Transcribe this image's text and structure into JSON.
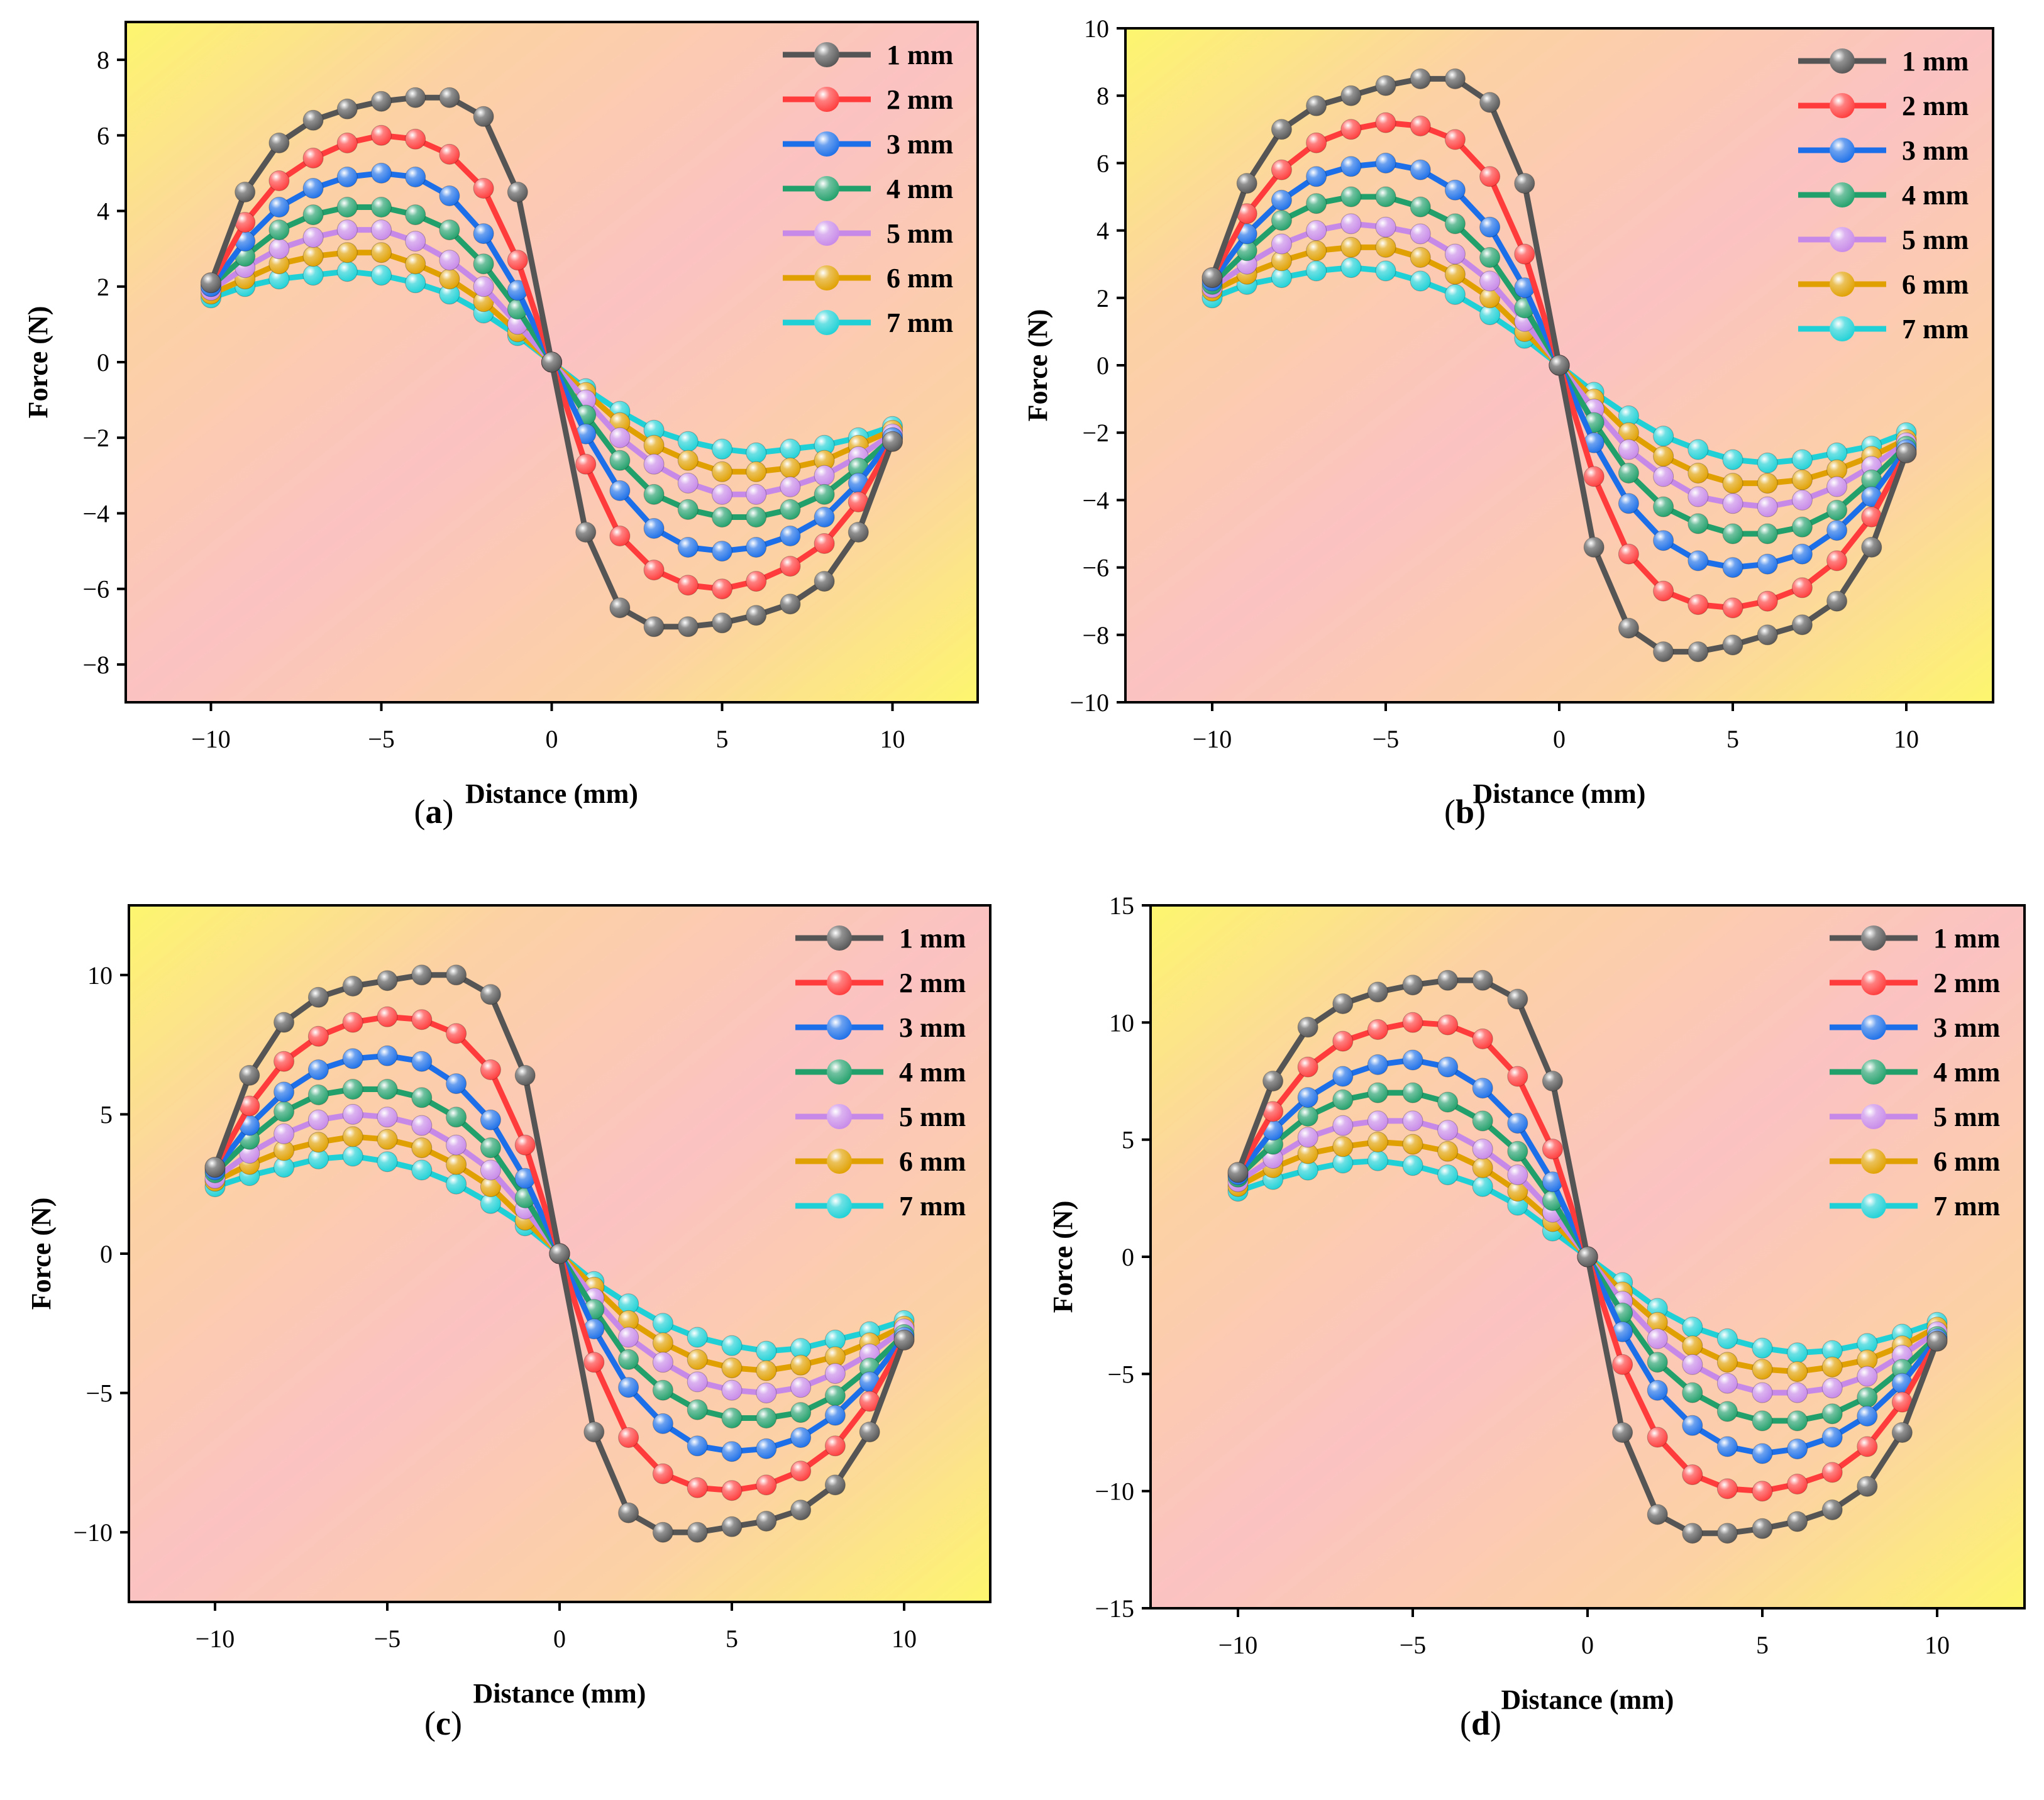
{
  "chart_data": [
    {
      "type": "line",
      "caption": "a",
      "xlabel": "Distance (mm)",
      "ylabel": "Force (N)",
      "xlim": [
        -12.5,
        12.5
      ],
      "ylim": [
        -9,
        9
      ],
      "xticks": [
        -10,
        -5,
        0,
        5,
        10
      ],
      "xtick_labels": [
        "−10",
        "−5",
        "0",
        "5",
        "10"
      ],
      "yticks": [
        -8,
        -6,
        -4,
        -2,
        0,
        2,
        4,
        6,
        8
      ],
      "ytick_labels": [
        "−8",
        "−6",
        "−4",
        "−2",
        "0",
        "2",
        "4",
        "6",
        "8"
      ],
      "legend_position": "top-right",
      "x": [
        -10,
        -9,
        -8,
        -7,
        -6,
        -5,
        -4,
        -3,
        -2,
        -1,
        0,
        1,
        2,
        3,
        4,
        5,
        6,
        7,
        8,
        9,
        10
      ],
      "series": [
        {
          "name": "1 mm",
          "color": "#555555",
          "values": [
            2.1,
            4.5,
            5.8,
            6.4,
            6.7,
            6.9,
            7.0,
            7.0,
            6.5,
            4.5,
            0,
            -4.5,
            -6.5,
            -7.0,
            -7.0,
            -6.9,
            -6.7,
            -6.4,
            -5.8,
            -4.5,
            -2.1
          ]
        },
        {
          "name": "2 mm",
          "color": "#ff3b3b",
          "values": [
            2.1,
            3.7,
            4.8,
            5.4,
            5.8,
            6.0,
            5.9,
            5.5,
            4.6,
            2.7,
            0,
            -2.7,
            -4.6,
            -5.5,
            -5.9,
            -6.0,
            -5.8,
            -5.4,
            -4.8,
            -3.7,
            -2.1
          ]
        },
        {
          "name": "3 mm",
          "color": "#1c6fe8",
          "values": [
            2.0,
            3.2,
            4.1,
            4.6,
            4.9,
            5.0,
            4.9,
            4.4,
            3.4,
            1.9,
            0,
            -1.9,
            -3.4,
            -4.4,
            -4.9,
            -5.0,
            -4.9,
            -4.6,
            -4.1,
            -3.2,
            -2.0
          ]
        },
        {
          "name": "4 mm",
          "color": "#22a06b",
          "values": [
            2.0,
            2.8,
            3.5,
            3.9,
            4.1,
            4.1,
            3.9,
            3.5,
            2.6,
            1.4,
            0,
            -1.4,
            -2.6,
            -3.5,
            -3.9,
            -4.1,
            -4.1,
            -3.9,
            -3.5,
            -2.8,
            -2.0
          ]
        },
        {
          "name": "5 mm",
          "color": "#c789e8",
          "values": [
            1.9,
            2.5,
            3.0,
            3.3,
            3.5,
            3.5,
            3.2,
            2.7,
            2.0,
            1.0,
            0,
            -1.0,
            -2.0,
            -2.7,
            -3.2,
            -3.5,
            -3.5,
            -3.3,
            -3.0,
            -2.5,
            -1.9
          ]
        },
        {
          "name": "6 mm",
          "color": "#e0a000",
          "values": [
            1.8,
            2.2,
            2.6,
            2.8,
            2.9,
            2.9,
            2.6,
            2.2,
            1.6,
            0.8,
            0,
            -0.8,
            -1.6,
            -2.2,
            -2.6,
            -2.9,
            -2.9,
            -2.8,
            -2.6,
            -2.2,
            -1.8
          ]
        },
        {
          "name": "7 mm",
          "color": "#1fd1d6",
          "values": [
            1.7,
            2.0,
            2.2,
            2.3,
            2.4,
            2.3,
            2.1,
            1.8,
            1.3,
            0.7,
            0,
            -0.7,
            -1.3,
            -1.8,
            -2.1,
            -2.3,
            -2.4,
            -2.3,
            -2.2,
            -2.0,
            -1.7
          ]
        }
      ]
    },
    {
      "type": "line",
      "caption": "b",
      "xlabel": "Distance (mm)",
      "ylabel": "Force (N)",
      "xlim": [
        -12.5,
        12.5
      ],
      "ylim": [
        -10,
        10
      ],
      "xticks": [
        -10,
        -5,
        0,
        5,
        10
      ],
      "xtick_labels": [
        "−10",
        "−5",
        "0",
        "5",
        "10"
      ],
      "yticks": [
        -10,
        -8,
        -6,
        -4,
        -2,
        0,
        2,
        4,
        6,
        8,
        10
      ],
      "ytick_labels": [
        "−10",
        "−8",
        "−6",
        "−4",
        "−2",
        "0",
        "2",
        "4",
        "6",
        "8",
        "10"
      ],
      "legend_position": "top-right",
      "x": [
        -10,
        -9,
        -8,
        -7,
        -6,
        -5,
        -4,
        -3,
        -2,
        -1,
        0,
        1,
        2,
        3,
        4,
        5,
        6,
        7,
        8,
        9,
        10
      ],
      "series": [
        {
          "name": "1 mm",
          "color": "#555555",
          "values": [
            2.6,
            5.4,
            7.0,
            7.7,
            8.0,
            8.3,
            8.5,
            8.5,
            7.8,
            5.4,
            0,
            -5.4,
            -7.8,
            -8.5,
            -8.5,
            -8.3,
            -8.0,
            -7.7,
            -7.0,
            -5.4,
            -2.6
          ]
        },
        {
          "name": "2 mm",
          "color": "#ff3b3b",
          "values": [
            2.6,
            4.5,
            5.8,
            6.6,
            7.0,
            7.2,
            7.1,
            6.7,
            5.6,
            3.3,
            0,
            -3.3,
            -5.6,
            -6.7,
            -7.1,
            -7.2,
            -7.0,
            -6.6,
            -5.8,
            -4.5,
            -2.6
          ]
        },
        {
          "name": "3 mm",
          "color": "#1c6fe8",
          "values": [
            2.5,
            3.9,
            4.9,
            5.6,
            5.9,
            6.0,
            5.8,
            5.2,
            4.1,
            2.3,
            0,
            -2.3,
            -4.1,
            -5.2,
            -5.8,
            -6.0,
            -5.9,
            -5.6,
            -4.9,
            -3.9,
            -2.5
          ]
        },
        {
          "name": "4 mm",
          "color": "#22a06b",
          "values": [
            2.4,
            3.4,
            4.3,
            4.8,
            5.0,
            5.0,
            4.7,
            4.2,
            3.2,
            1.7,
            0,
            -1.7,
            -3.2,
            -4.2,
            -4.7,
            -5.0,
            -5.0,
            -4.8,
            -4.3,
            -3.4,
            -2.4
          ]
        },
        {
          "name": "5 mm",
          "color": "#c789e8",
          "values": [
            2.3,
            3.0,
            3.6,
            4.0,
            4.2,
            4.1,
            3.9,
            3.3,
            2.5,
            1.3,
            0,
            -1.3,
            -2.5,
            -3.3,
            -3.9,
            -4.1,
            -4.2,
            -4.0,
            -3.6,
            -3.0,
            -2.3
          ]
        },
        {
          "name": "6 mm",
          "color": "#e0a000",
          "values": [
            2.2,
            2.7,
            3.1,
            3.4,
            3.5,
            3.5,
            3.2,
            2.7,
            2.0,
            1.0,
            0,
            -1.0,
            -2.0,
            -2.7,
            -3.2,
            -3.5,
            -3.5,
            -3.4,
            -3.1,
            -2.7,
            -2.2
          ]
        },
        {
          "name": "7 mm",
          "color": "#1fd1d6",
          "values": [
            2.0,
            2.4,
            2.6,
            2.8,
            2.9,
            2.8,
            2.5,
            2.1,
            1.5,
            0.8,
            0,
            -0.8,
            -1.5,
            -2.1,
            -2.5,
            -2.8,
            -2.9,
            -2.8,
            -2.6,
            -2.4,
            -2.0
          ]
        }
      ]
    },
    {
      "type": "line",
      "caption": "c",
      "xlabel": "Distance (mm)",
      "ylabel": "Force (N)",
      "xlim": [
        -12.5,
        12.5
      ],
      "ylim": [
        -12.5,
        12.5
      ],
      "xticks": [
        -10,
        -5,
        0,
        5,
        10
      ],
      "xtick_labels": [
        "−10",
        "−5",
        "0",
        "5",
        "10"
      ],
      "yticks": [
        -10,
        -5,
        0,
        5,
        10
      ],
      "ytick_labels": [
        "−10",
        "−5",
        "0",
        "5",
        "10"
      ],
      "legend_position": "top-right",
      "x": [
        -10,
        -9,
        -8,
        -7,
        -6,
        -5,
        -4,
        -3,
        -2,
        -1,
        0,
        1,
        2,
        3,
        4,
        5,
        6,
        7,
        8,
        9,
        10
      ],
      "series": [
        {
          "name": "1 mm",
          "color": "#555555",
          "values": [
            3.1,
            6.4,
            8.3,
            9.2,
            9.6,
            9.8,
            10.0,
            10.0,
            9.3,
            6.4,
            0,
            -6.4,
            -9.3,
            -10.0,
            -10.0,
            -9.8,
            -9.6,
            -9.2,
            -8.3,
            -6.4,
            -3.1
          ]
        },
        {
          "name": "2 mm",
          "color": "#ff3b3b",
          "values": [
            3.1,
            5.3,
            6.9,
            7.8,
            8.3,
            8.5,
            8.4,
            7.9,
            6.6,
            3.9,
            0,
            -3.9,
            -6.6,
            -7.9,
            -8.4,
            -8.5,
            -8.3,
            -7.8,
            -6.9,
            -5.3,
            -3.1
          ]
        },
        {
          "name": "3 mm",
          "color": "#1c6fe8",
          "values": [
            3.0,
            4.6,
            5.8,
            6.6,
            7.0,
            7.1,
            6.9,
            6.1,
            4.8,
            2.7,
            0,
            -2.7,
            -4.8,
            -6.1,
            -6.9,
            -7.1,
            -7.0,
            -6.6,
            -5.8,
            -4.6,
            -3.0
          ]
        },
        {
          "name": "4 mm",
          "color": "#22a06b",
          "values": [
            2.9,
            4.1,
            5.1,
            5.7,
            5.9,
            5.9,
            5.6,
            4.9,
            3.8,
            2.0,
            0,
            -2.0,
            -3.8,
            -4.9,
            -5.6,
            -5.9,
            -5.9,
            -5.7,
            -5.1,
            -4.1,
            -2.9
          ]
        },
        {
          "name": "5 mm",
          "color": "#c789e8",
          "values": [
            2.7,
            3.6,
            4.3,
            4.8,
            5.0,
            4.9,
            4.6,
            3.9,
            3.0,
            1.6,
            0,
            -1.6,
            -3.0,
            -3.9,
            -4.6,
            -4.9,
            -5.0,
            -4.8,
            -4.3,
            -3.6,
            -2.7
          ]
        },
        {
          "name": "6 mm",
          "color": "#e0a000",
          "values": [
            2.6,
            3.2,
            3.7,
            4.0,
            4.2,
            4.1,
            3.8,
            3.2,
            2.4,
            1.2,
            0,
            -1.2,
            -2.4,
            -3.2,
            -3.8,
            -4.1,
            -4.2,
            -4.0,
            -3.7,
            -3.2,
            -2.6
          ]
        },
        {
          "name": "7 mm",
          "color": "#1fd1d6",
          "values": [
            2.4,
            2.8,
            3.1,
            3.4,
            3.5,
            3.3,
            3.0,
            2.5,
            1.8,
            1.0,
            0,
            -1.0,
            -1.8,
            -2.5,
            -3.0,
            -3.3,
            -3.5,
            -3.4,
            -3.1,
            -2.8,
            -2.4
          ]
        }
      ]
    },
    {
      "type": "line",
      "caption": "d",
      "xlabel": "Distance (mm)",
      "ylabel": "Force (N)",
      "xlim": [
        -12.5,
        12.5
      ],
      "ylim": [
        -15,
        15
      ],
      "xticks": [
        -10,
        -5,
        0,
        5,
        10
      ],
      "xtick_labels": [
        "−10",
        "−5",
        "0",
        "5",
        "10"
      ],
      "yticks": [
        -15,
        -10,
        -5,
        0,
        5,
        10,
        15
      ],
      "ytick_labels": [
        "−15",
        "−10",
        "−5",
        "0",
        "5",
        "10",
        "15"
      ],
      "legend_position": "top-right",
      "x": [
        -10,
        -9,
        -8,
        -7,
        -6,
        -5,
        -4,
        -3,
        -2,
        -1,
        0,
        1,
        2,
        3,
        4,
        5,
        6,
        7,
        8,
        9,
        10
      ],
      "series": [
        {
          "name": "1 mm",
          "color": "#555555",
          "values": [
            3.6,
            7.5,
            9.8,
            10.8,
            11.3,
            11.6,
            11.8,
            11.8,
            11.0,
            7.5,
            0,
            -7.5,
            -11.0,
            -11.8,
            -11.8,
            -11.6,
            -11.3,
            -10.8,
            -9.8,
            -7.5,
            -3.6
          ]
        },
        {
          "name": "2 mm",
          "color": "#ff3b3b",
          "values": [
            3.6,
            6.2,
            8.1,
            9.2,
            9.7,
            10.0,
            9.9,
            9.3,
            7.7,
            4.6,
            0,
            -4.6,
            -7.7,
            -9.3,
            -9.9,
            -10.0,
            -9.7,
            -9.2,
            -8.1,
            -6.2,
            -3.6
          ]
        },
        {
          "name": "3 mm",
          "color": "#1c6fe8",
          "values": [
            3.5,
            5.4,
            6.8,
            7.7,
            8.2,
            8.4,
            8.1,
            7.2,
            5.7,
            3.2,
            0,
            -3.2,
            -5.7,
            -7.2,
            -8.1,
            -8.4,
            -8.2,
            -7.7,
            -6.8,
            -5.4,
            -3.5
          ]
        },
        {
          "name": "4 mm",
          "color": "#22a06b",
          "values": [
            3.4,
            4.8,
            6.0,
            6.7,
            7.0,
            7.0,
            6.6,
            5.8,
            4.5,
            2.4,
            0,
            -2.4,
            -4.5,
            -5.8,
            -6.6,
            -7.0,
            -7.0,
            -6.7,
            -6.0,
            -4.8,
            -3.4
          ]
        },
        {
          "name": "5 mm",
          "color": "#c789e8",
          "values": [
            3.2,
            4.2,
            5.1,
            5.6,
            5.8,
            5.8,
            5.4,
            4.6,
            3.5,
            1.9,
            0,
            -1.9,
            -3.5,
            -4.6,
            -5.4,
            -5.8,
            -5.8,
            -5.6,
            -5.1,
            -4.2,
            -3.2
          ]
        },
        {
          "name": "6 mm",
          "color": "#e0a000",
          "values": [
            3.0,
            3.8,
            4.4,
            4.7,
            4.9,
            4.8,
            4.5,
            3.8,
            2.8,
            1.5,
            0,
            -1.5,
            -2.8,
            -3.8,
            -4.5,
            -4.8,
            -4.9,
            -4.7,
            -4.4,
            -3.8,
            -3.0
          ]
        },
        {
          "name": "7 mm",
          "color": "#1fd1d6",
          "values": [
            2.8,
            3.3,
            3.7,
            4.0,
            4.1,
            3.9,
            3.5,
            3.0,
            2.2,
            1.1,
            0,
            -1.1,
            -2.2,
            -3.0,
            -3.5,
            -3.9,
            -4.1,
            -4.0,
            -3.7,
            -3.3,
            -2.8
          ]
        }
      ]
    }
  ]
}
